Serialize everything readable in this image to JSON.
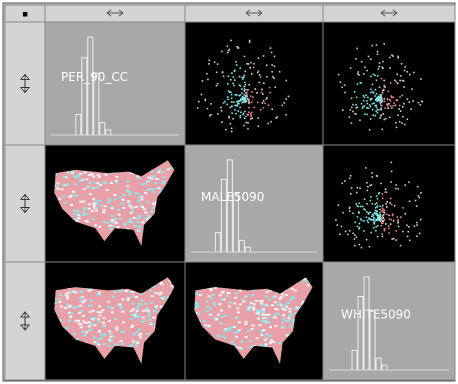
{
  "matrix": {
    "variables": [
      "PER_90_CC",
      "MALE5090",
      "WHITE5090"
    ]
  }
}
